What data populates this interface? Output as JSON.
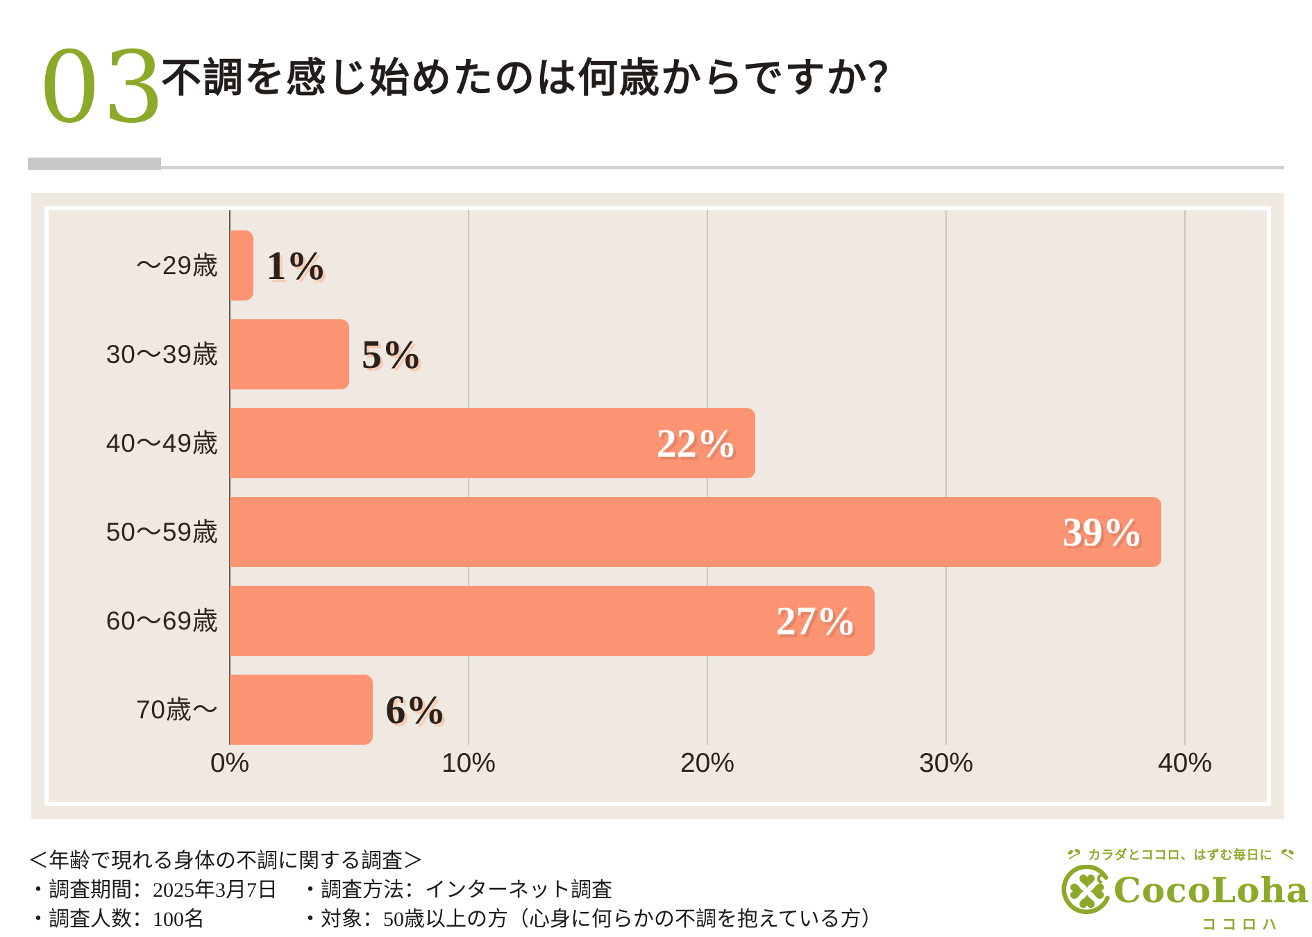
{
  "header": {
    "number": "03",
    "title": "不調を感じ始めたのは何歳からですか？"
  },
  "chart_data": {
    "type": "bar",
    "orientation": "horizontal",
    "title": "不調を感じ始めたのは何歳からですか？",
    "categories": [
      "～29歳",
      "30～39歳",
      "40～49歳",
      "50～59歳",
      "60～69歳",
      "70歳～"
    ],
    "values": [
      1,
      5,
      22,
      39,
      27,
      6
    ],
    "value_labels": [
      "1%",
      "5%",
      "22%",
      "39%",
      "27%",
      "6%"
    ],
    "x_ticks": [
      "0%",
      "10%",
      "20%",
      "30%",
      "40%"
    ],
    "xlim": [
      0,
      40
    ],
    "grid": true,
    "xlabel": "",
    "ylabel": "",
    "bar_color": "#FC9473",
    "label_inside_threshold": 20
  },
  "footer": {
    "survey_title": "＜年齢で現れる身体の不調に関する調査＞",
    "period": "・調査期間：2025年3月7日",
    "method": "・調査方法：インターネット調査",
    "sample": "・調査人数：100名",
    "target": "・対象：50歳以上の方（心身に何らかの不調を抱えている方）"
  },
  "logo": {
    "tagline": "カラダとココロ、はずむ毎日に",
    "name": "CocoLoha",
    "kana": "ココロハ"
  },
  "colors": {
    "accent_olive": "#8CA929",
    "bar_salmon": "#FC9473",
    "panel_beige": "#EFE9E2",
    "text_dark": "#2B211C",
    "outside_label_shadow": "#F8CBB2"
  }
}
